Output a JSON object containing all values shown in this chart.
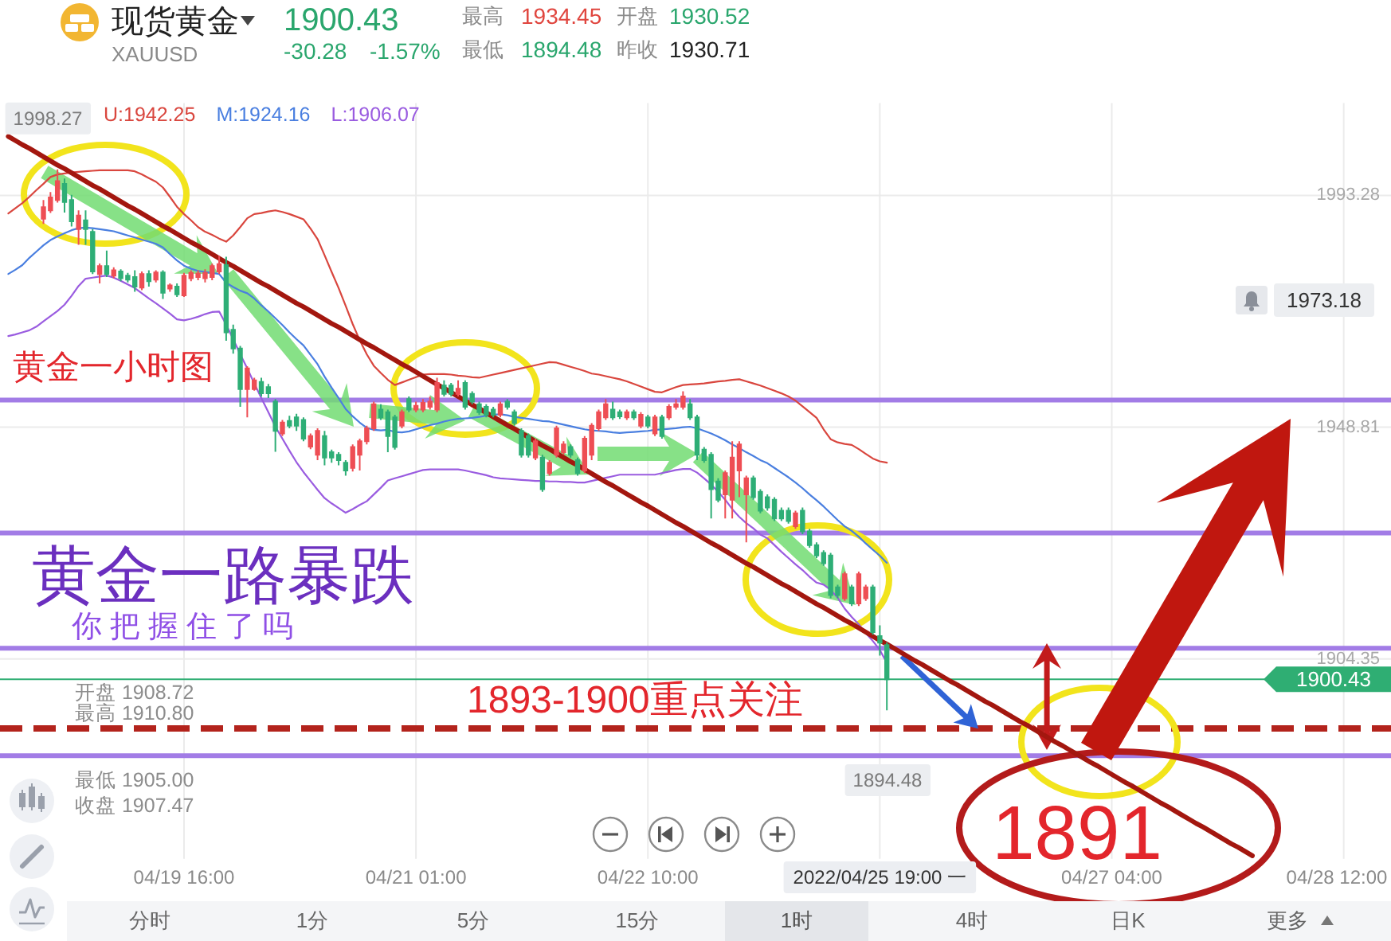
{
  "chart_data": {
    "type": "candlestick",
    "title": "现货黄金",
    "subtitle": "XAUUSD",
    "categories": [
      null,
      null,
      null,
      null,
      null,
      null,
      null,
      null,
      null,
      null,
      null,
      null,
      null,
      null,
      null,
      null,
      null,
      null,
      null,
      null,
      null,
      null,
      null,
      null,
      null,
      "04/19 16:00",
      null,
      null,
      null,
      null,
      null,
      null,
      null,
      null,
      null,
      null,
      null,
      null,
      null,
      null,
      null,
      null,
      null,
      null,
      null,
      null,
      null,
      null,
      null,
      null,
      null,
      null,
      null,
      null,
      null,
      null,
      null,
      null,
      "04/21 01:00",
      null,
      null,
      null,
      null,
      null,
      null,
      null,
      null,
      null,
      null,
      null,
      null,
      null,
      null,
      null,
      null,
      null,
      null,
      null,
      null,
      null,
      null,
      null,
      null,
      null,
      null,
      null,
      null,
      null,
      null,
      null,
      null,
      "04/22 10:00",
      null,
      null,
      null,
      null,
      null,
      null,
      null,
      null,
      null,
      null,
      null,
      null,
      null,
      null,
      null,
      null,
      null,
      null,
      null,
      null,
      null,
      null,
      null,
      null,
      null,
      null,
      null,
      null,
      null,
      null,
      null,
      null,
      "2022/04/25 19:00 一",
      null,
      null,
      null,
      null,
      null,
      null,
      null,
      null,
      null,
      null,
      null,
      null,
      null,
      null,
      null,
      null,
      null,
      null,
      null,
      null,
      null,
      null,
      null,
      null,
      null,
      null,
      null,
      null,
      null,
      null,
      null,
      null,
      "04/27 04:00",
      null,
      null,
      null,
      null,
      null,
      null,
      null,
      null,
      null,
      null,
      null,
      null,
      null,
      null,
      null,
      null,
      null,
      null,
      null,
      null,
      null,
      null,
      null,
      null,
      null,
      null,
      null,
      null,
      null,
      null,
      null,
      null,
      "04/28 12:00",
      null,
      null,
      null,
      null,
      null,
      null
    ],
    "ohlc": [
      null,
      null,
      null,
      null,
      null,
      [
        1988.8,
        1992.4,
        1987.8,
        1991.0
      ],
      [
        1990.4,
        1993.9,
        1989.9,
        1992.9
      ],
      [
        1992.4,
        1998.27,
        1991.9,
        1996.0
      ],
      [
        1995.5,
        1996.5,
        1990.0,
        1992.0
      ],
      [
        1992.4,
        1993.4,
        1987.3,
        1988.3
      ],
      [
        1986.8,
        1990.4,
        1983.8,
        1989.4
      ],
      [
        1988.5,
        1990.4,
        1983.8,
        1986.8
      ],
      [
        1986.3,
        1986.8,
        1978.2,
        1978.7
      ],
      [
        1978.2,
        1980.2,
        1976.4,
        1979.7
      ],
      [
        1979.7,
        1982.7,
        1977.6,
        1978.2
      ],
      [
        1977.9,
        1979.5,
        1977.4,
        1978.9
      ],
      [
        1978.7,
        1979.1,
        1976.8,
        1977.4
      ],
      [
        1977.9,
        1978.4,
        1976.6,
        1977.1
      ],
      [
        1977.6,
        1978.9,
        1974.8,
        1975.8
      ],
      [
        1975.6,
        1978.7,
        1975.1,
        1978.2
      ],
      [
        1978.2,
        1978.9,
        1975.8,
        1976.8
      ],
      [
        1977.1,
        1978.9,
        1976.6,
        1978.5
      ],
      [
        1978.5,
        1978.9,
        1973.4,
        1974.6
      ],
      [
        1975.4,
        1976.4,
        1974.8,
        1976.0
      ],
      [
        1975.8,
        1976.4,
        1973.8,
        1974.3
      ],
      [
        1974.1,
        1978.4,
        1973.8,
        1977.9
      ],
      [
        1977.4,
        1978.9,
        1976.8,
        1978.4
      ],
      [
        1977.6,
        1978.9,
        1977.0,
        1978.3
      ],
      [
        1977.4,
        1979.1,
        1976.6,
        1978.4
      ],
      [
        1977.6,
        1980.2,
        1977.0,
        1979.7
      ],
      [
        1978.7,
        1981.7,
        1978.2,
        1980.1
      ],
      [
        1979.9,
        1981.5,
        1965.4,
        1967.0
      ],
      [
        1967.5,
        1968.5,
        1962.9,
        1963.9
      ],
      [
        1963.9,
        1964.4,
        1952.7,
        1956.1
      ],
      [
        1956.1,
        1960.5,
        1950.7,
        1960.1
      ],
      [
        1956.1,
        1958.3,
        1955.8,
        1957.8
      ],
      [
        1957.5,
        1958.3,
        1954.7,
        1955.3
      ],
      [
        1956.5,
        1957.1,
        1954.4,
        1955.3
      ],
      [
        1953.7,
        1954.2,
        1944.1,
        1948.1
      ],
      [
        1947.6,
        1950.2,
        1947.1,
        1949.7
      ],
      [
        1950.0,
        1951.0,
        1948.6,
        1949.1
      ],
      [
        1950.7,
        1951.4,
        1948.1,
        1949.1
      ],
      [
        1950.2,
        1950.7,
        1946.1,
        1946.6
      ],
      [
        1945.1,
        1947.6,
        1944.6,
        1947.1
      ],
      [
        1943.5,
        1948.6,
        1942.5,
        1948.1
      ],
      [
        1947.1,
        1948.1,
        1941.5,
        1943.0
      ],
      [
        1944.0,
        1944.5,
        1942.0,
        1943.0
      ],
      [
        1943.5,
        1944.0,
        1941.5,
        1942.5
      ],
      [
        1942.0,
        1942.5,
        1939.5,
        1940.5
      ],
      [
        1941.0,
        1945.5,
        1940.3,
        1945.0
      ],
      [
        1943.5,
        1946.6,
        1940.5,
        1946.1
      ],
      [
        1946.1,
        1949.1,
        1945.5,
        1948.6
      ],
      [
        1948.6,
        1953.7,
        1948.1,
        1953.2
      ],
      [
        1952.2,
        1953.2,
        1950.2,
        1950.7
      ],
      [
        1951.7,
        1952.2,
        1944.0,
        1947.1
      ],
      [
        1950.7,
        1951.2,
        1944.5,
        1945.0
      ],
      [
        1949.1,
        1952.2,
        1948.6,
        1951.7
      ],
      [
        1954.2,
        1954.7,
        1951.7,
        1952.2
      ],
      [
        1952.2,
        1953.7,
        1951.7,
        1952.9
      ],
      [
        1952.2,
        1954.2,
        1951.7,
        1953.5
      ],
      [
        1952.7,
        1954.7,
        1952.2,
        1953.7
      ],
      [
        1952.2,
        1958.3,
        1951.7,
        1957.3
      ],
      [
        1956.8,
        1957.8,
        1954.7,
        1955.2
      ],
      [
        1956.8,
        1957.3,
        1954.7,
        1955.2
      ],
      [
        1955.2,
        1957.8,
        1954.7,
        1956.2
      ],
      [
        1957.3,
        1957.8,
        1952.2,
        1952.7
      ],
      [
        1955.2,
        1955.7,
        1953.2,
        1953.7
      ],
      [
        1953.2,
        1953.7,
        1951.2,
        1951.7
      ],
      [
        1952.7,
        1953.2,
        1950.7,
        1951.2
      ],
      [
        1952.2,
        1952.7,
        1950.7,
        1951.2
      ],
      [
        1951.2,
        1953.7,
        1950.7,
        1953.2
      ],
      [
        1953.7,
        1954.2,
        1952.2,
        1952.7
      ],
      [
        1951.7,
        1952.2,
        1949.1,
        1949.6
      ],
      [
        1948.1,
        1948.6,
        1943.0,
        1943.5
      ],
      [
        1947.1,
        1947.6,
        1943.0,
        1943.5
      ],
      [
        1943.0,
        1946.6,
        1942.5,
        1946.1
      ],
      [
        1943.0,
        1943.5,
        1936.4,
        1936.9
      ],
      [
        1940.0,
        1942.5,
        1939.5,
        1942.0
      ],
      [
        1943.5,
        1949.1,
        1943.0,
        1948.6
      ],
      [
        1944.0,
        1946.1,
        1943.5,
        1945.5
      ],
      [
        1945.0,
        1945.5,
        1943.0,
        1943.5
      ],
      [
        1942.5,
        1943.0,
        1939.5,
        1940.0
      ],
      [
        1940.5,
        1947.1,
        1940.0,
        1946.6
      ],
      [
        1943.5,
        1949.6,
        1942.5,
        1949.1
      ],
      [
        1948.6,
        1952.2,
        1948.1,
        1951.7
      ],
      [
        1950.7,
        1954.2,
        1950.2,
        1953.2
      ],
      [
        1952.2,
        1953.7,
        1950.2,
        1950.7
      ],
      [
        1951.7,
        1952.2,
        1950.4,
        1950.9
      ],
      [
        1950.7,
        1952.2,
        1950.2,
        1951.7
      ],
      [
        1951.7,
        1952.2,
        1950.2,
        1950.7
      ],
      [
        1949.1,
        1951.7,
        1948.6,
        1951.2
      ],
      [
        1950.7,
        1951.2,
        1948.6,
        1949.1
      ],
      [
        1947.6,
        1951.2,
        1947.1,
        1950.7
      ],
      [
        1950.7,
        1951.2,
        1946.6,
        1947.1
      ],
      [
        1950.7,
        1953.2,
        1950.2,
        1952.7
      ],
      [
        1952.7,
        1954.2,
        1952.2,
        1953.2
      ],
      [
        1952.7,
        1955.7,
        1952.2,
        1954.7
      ],
      [
        1953.2,
        1954.2,
        1950.2,
        1950.7
      ],
      [
        1950.7,
        1951.2,
        1942.5,
        1943.5
      ],
      [
        1944.5,
        1945.0,
        1942.0,
        1942.5
      ],
      [
        1943.5,
        1944.0,
        1931.3,
        1936.9
      ],
      [
        1938.4,
        1939.0,
        1934.4,
        1934.9
      ],
      [
        1935.9,
        1940.5,
        1931.3,
        1940.0
      ],
      [
        1934.9,
        1946.1,
        1931.3,
        1943.0
      ],
      [
        1940.5,
        1946.1,
        1935.4,
        1945.5
      ],
      [
        1935.9,
        1939.5,
        1926.7,
        1939.0
      ],
      [
        1939.0,
        1939.5,
        1934.9,
        1935.4
      ],
      [
        1936.4,
        1936.9,
        1932.3,
        1932.8
      ],
      [
        1935.4,
        1935.9,
        1932.8,
        1933.4
      ],
      [
        1934.9,
        1935.4,
        1930.8,
        1931.3
      ],
      [
        1932.8,
        1933.4,
        1930.8,
        1931.3
      ],
      [
        1932.8,
        1933.4,
        1930.3,
        1930.8
      ],
      [
        1929.8,
        1932.8,
        1929.3,
        1932.3
      ],
      [
        1932.8,
        1933.4,
        1928.3,
        1928.8
      ],
      [
        1928.8,
        1929.3,
        1925.7,
        1926.2
      ],
      [
        1926.2,
        1926.7,
        1923.7,
        1924.2
      ],
      [
        1924.7,
        1925.2,
        1922.2,
        1922.7
      ],
      [
        1924.2,
        1924.7,
        1916.0,
        1916.6
      ],
      [
        1918.1,
        1918.6,
        1916.0,
        1916.6
      ],
      [
        1916.0,
        1921.1,
        1915.5,
        1920.6
      ],
      [
        1918.1,
        1918.6,
        1914.5,
        1915.0
      ],
      [
        1915.0,
        1921.1,
        1914.5,
        1920.6
      ],
      [
        1916.0,
        1918.6,
        1915.5,
        1918.1
      ],
      [
        1918.1,
        1918.6,
        1909.0,
        1909.5
      ],
      [
        1908.72,
        1910.8,
        1905.0,
        1907.47
      ],
      [
        1907.0,
        1907.5,
        1894.48,
        1900.43
      ],
      null,
      null,
      null,
      null,
      null,
      null,
      null,
      null,
      null,
      null,
      null,
      null,
      null,
      null,
      null,
      null,
      null,
      null,
      null,
      null,
      null,
      null,
      null,
      null,
      null,
      null,
      null,
      null,
      null,
      null,
      null,
      null,
      null,
      null,
      null,
      null,
      null,
      null,
      null,
      null,
      null,
      null,
      null,
      null,
      null,
      null,
      null,
      null,
      null,
      null,
      null,
      null,
      null,
      null,
      null,
      null,
      null,
      null,
      null,
      null,
      null,
      null,
      null,
      null,
      null,
      null,
      null,
      null,
      null,
      null,
      null
    ],
    "colors": [
      null,
      null,
      null,
      null,
      null,
      "#ee4e54",
      "#ee4e54",
      "#ee4e54",
      "#2eae76",
      "#2eae76",
      "#ee4e54",
      "#2eae76",
      "#2eae76",
      "#ee4e54",
      "#2eae76",
      "#ee4e54",
      "#2eae76",
      "#2eae76",
      "#2eae76",
      "#ee4e54",
      "#2eae76",
      "#ee4e54",
      "#2eae76",
      "#ee4e54",
      "#2eae76",
      "#ee4e54",
      "#ee4e54",
      "#ee4e54",
      "#ee4e54",
      "#ee4e54",
      "#ee4e54",
      "#2eae76",
      "#2eae76",
      "#2eae76",
      "#ee4e54",
      "#ee4e54",
      "#2eae76",
      "#2eae76",
      "#2eae76",
      "#ee4e54",
      "#2eae76",
      "#2eae76",
      "#2eae76",
      "#ee4e54",
      "#ee4e54",
      "#2eae76",
      "#2eae76",
      "#2eae76",
      "#2eae76",
      "#ee4e54",
      "#ee4e54",
      "#ee4e54",
      "#ee4e54",
      "#2eae76",
      "#2eae76",
      "#2eae76",
      "#ee4e54",
      "#2eae76",
      "#ee4e54",
      "#ee4e54",
      "#ee4e54",
      "#ee4e54",
      "#2eae76",
      "#2eae76",
      "#ee4e54",
      "#2eae76",
      "#2eae76",
      "#2eae76",
      "#2eae76",
      "#2eae76",
      "#ee4e54",
      "#2eae76",
      "#2eae76",
      "#2eae76",
      "#2eae76",
      "#ee4e54",
      "#2eae76",
      "#ee4e54",
      "#ee4e54",
      "#ee4e54",
      "#2eae76",
      "#2eae76",
      "#ee4e54",
      "#ee4e54",
      "#ee4e54",
      "#ee4e54",
      "#2eae76",
      "#2eae76",
      "#ee4e54",
      "#2eae76",
      "#ee4e54",
      "#2eae76",
      "#ee4e54",
      "#2eae76",
      "#ee4e54",
      "#ee4e54",
      "#ee4e54",
      "#2eae76",
      "#2eae76",
      "#2eae76",
      "#2eae76",
      "#2eae76",
      "#ee4e54",
      "#ee4e54",
      "#ee4e54",
      "#ee4e54",
      "#2eae76",
      "#2eae76",
      "#2eae76",
      "#2eae76",
      "#2eae76",
      "#2eae76",
      "#ee4e54",
      "#2eae76",
      "#2eae76",
      "#2eae76",
      "#2eae76",
      "#2eae76",
      "#2eae76",
      "#ee4e54",
      "#2eae76",
      "#ee4e54",
      "#ee4e54",
      "#2eae76",
      "#2eae76",
      "#2eae76",
      null,
      null,
      null,
      null,
      null,
      null,
      null,
      null,
      null,
      null,
      null,
      null,
      null,
      null,
      null,
      null,
      null,
      null,
      null,
      null,
      null,
      null,
      null,
      null,
      null,
      null,
      null,
      null,
      null,
      null,
      null,
      null,
      null,
      null,
      null,
      null,
      null,
      null,
      null,
      null,
      null,
      null,
      null,
      null,
      null,
      null,
      null,
      null,
      null,
      null,
      null,
      null,
      null,
      null,
      null,
      null,
      null,
      null,
      null,
      null,
      null,
      null,
      null,
      null,
      null,
      null,
      null,
      null,
      null,
      null,
      null
    ],
    "series": [
      {
        "name": "U:1942.25",
        "type": "line",
        "color": "#d9463e",
        "values": [
          1989.8,
          1990.8,
          1991.8,
          1993.0,
          1994.3,
          1995.5,
          1996.8,
          1997.3,
          1997.5,
          1997.7,
          1997.8,
          1997.9,
          1998.0,
          1998.1,
          1998.1,
          1998.1,
          1998.1,
          1998.1,
          1997.9,
          1997.3,
          1996.6,
          1995.9,
          1994.8,
          1993.0,
          1991.1,
          1989.7,
          1988.5,
          1987.2,
          1986.3,
          1985.7,
          1985.0,
          1984.4,
          1985.6,
          1987.2,
          1988.9,
          1989.7,
          1989.9,
          1990.2,
          1990.4,
          1990.1,
          1989.7,
          1989.2,
          1988.7,
          1986.9,
          1984.9,
          1981.8,
          1978.6,
          1975.5,
          1972.1,
          1968.6,
          1965.5,
          1962.8,
          1960.6,
          1959.2,
          1957.9,
          1956.9,
          1957.4,
          1957.9,
          1958.4,
          1958.9,
          1959.0,
          1959.0,
          1959.0,
          1958.9,
          1958.7,
          1958.6,
          1958.4,
          1958.3,
          1958.6,
          1958.9,
          1959.2,
          1959.5,
          1959.8,
          1960.1,
          1960.4,
          1960.7,
          1961.0,
          1961.3,
          1961.2,
          1960.8,
          1960.4,
          1960.0,
          1959.6,
          1959.1,
          1958.9,
          1958.6,
          1958.3,
          1958.0,
          1957.6,
          1957.1,
          1956.6,
          1956.1,
          1955.6,
          1955.5,
          1956.0,
          1956.5,
          1956.9,
          1957.0,
          1957.1,
          1957.2,
          1957.4,
          1957.6,
          1957.7,
          1957.9,
          1958.0,
          1957.6,
          1957.2,
          1956.8,
          1956.3,
          1955.8,
          1955.3,
          1954.7,
          1953.9,
          1952.8,
          1951.7,
          1950.6,
          1948.4,
          1946.5,
          1945.9,
          1945.6,
          1945.4,
          1944.6,
          1943.7,
          1942.8,
          1942.25,
          1942.0,
          null,
          null,
          null,
          null,
          null,
          null,
          null,
          null,
          null,
          null,
          null,
          null,
          null,
          null,
          null,
          null,
          null,
          null,
          null,
          null,
          null,
          null,
          null,
          null,
          null,
          null,
          null,
          null,
          null,
          null,
          null,
          null,
          null,
          null,
          null,
          null,
          null,
          null,
          null,
          null,
          null,
          null,
          null,
          null,
          null,
          null,
          null,
          null,
          null,
          null,
          null,
          null,
          null,
          null,
          null,
          null,
          null,
          null,
          null,
          null,
          null,
          null,
          null,
          null,
          null,
          null,
          null,
          null,
          null,
          null,
          null
        ]
      },
      {
        "name": "M:1924.16",
        "type": "line",
        "color": "#4a7fe0",
        "values": [
          1978.2,
          1979.0,
          1979.9,
          1981.3,
          1982.5,
          1983.7,
          1984.7,
          1985.4,
          1986.0,
          1986.6,
          1987.0,
          1987.1,
          1987.0,
          1986.8,
          1986.6,
          1986.4,
          1986.0,
          1985.6,
          1985.2,
          1984.8,
          1984.4,
          1984.0,
          1983.3,
          1982.0,
          1980.8,
          1979.8,
          1979.2,
          1978.8,
          1978.6,
          1978.4,
          1978.2,
          1976.5,
          1975.7,
          1975.0,
          1974.5,
          1973.5,
          1972.2,
          1971.0,
          1969.7,
          1968.4,
          1967.0,
          1965.7,
          1964.5,
          1962.7,
          1960.9,
          1958.5,
          1956.4,
          1954.4,
          1952.3,
          1950.9,
          1949.7,
          1948.7,
          1948.3,
          1948.2,
          1948.3,
          1947.9,
          1947.8,
          1948.0,
          1948.4,
          1948.8,
          1949.2,
          1949.5,
          1949.9,
          1950.2,
          1950.4,
          1950.5,
          1950.6,
          1950.8,
          1951.0,
          1951.2,
          1951.3,
          1951.1,
          1950.8,
          1950.6,
          1950.4,
          1950.2,
          1950.0,
          1949.9,
          1949.6,
          1949.3,
          1949.0,
          1948.7,
          1948.4,
          1948.2,
          1948.1,
          1948.0,
          1947.8,
          1947.7,
          1947.8,
          1947.9,
          1948.0,
          1948.1,
          1948.3,
          1948.4,
          1948.5,
          1948.6,
          1948.8,
          1948.9,
          1948.6,
          1948.1,
          1947.6,
          1947.0,
          1946.3,
          1945.5,
          1944.8,
          1944.0,
          1943.3,
          1942.5,
          1941.9,
          1941.0,
          1940.1,
          1939.2,
          1938.2,
          1937.1,
          1935.9,
          1934.8,
          1933.6,
          1932.3,
          1931.0,
          1929.8,
          1928.9,
          1927.8,
          1926.5,
          1925.3,
          1924.16,
          1922.8,
          null,
          null,
          null,
          null,
          null,
          null,
          null,
          null,
          null,
          null,
          null,
          null,
          null,
          null,
          null,
          null,
          null,
          null,
          null,
          null,
          null,
          null,
          null,
          null,
          null,
          null,
          null,
          null,
          null,
          null,
          null,
          null,
          null,
          null,
          null,
          null,
          null,
          null,
          null,
          null,
          null,
          null,
          null,
          null,
          null,
          null,
          null,
          null,
          null,
          null,
          null,
          null,
          null,
          null,
          null,
          null,
          null,
          null,
          null,
          null,
          null,
          null,
          null,
          null,
          null,
          null,
          null,
          null,
          null,
          null,
          null
        ]
      },
      {
        "name": "L:1906.07",
        "type": "line",
        "color": "#9a5ce0",
        "values": [
          1966.3,
          1966.6,
          1967.0,
          1967.4,
          1968.1,
          1969.1,
          1970.1,
          1971.1,
          1972.3,
          1974.0,
          1975.9,
          1977.3,
          1977.5,
          1977.7,
          1977.9,
          1977.5,
          1976.9,
          1976.2,
          1975.5,
          1974.5,
          1973.5,
          1972.6,
          1971.6,
          1970.6,
          1969.5,
          1969.3,
          1969.6,
          1970.0,
          1970.5,
          1970.9,
          1971.0,
          1968.5,
          1965.7,
          1962.8,
          1960.1,
          1957.2,
          1954.4,
          1951.7,
          1948.9,
          1946.6,
          1944.3,
          1942.1,
          1940.2,
          1938.5,
          1936.8,
          1935.2,
          1934.2,
          1933.3,
          1932.4,
          1933.1,
          1933.9,
          1934.6,
          1935.9,
          1937.2,
          1938.6,
          1939.0,
          1939.4,
          1939.8,
          1940.2,
          1940.6,
          1940.7,
          1940.7,
          1940.7,
          1940.7,
          1940.7,
          1940.5,
          1940.2,
          1939.9,
          1939.6,
          1939.2,
          1939.0,
          1938.9,
          1938.8,
          1938.7,
          1938.6,
          1938.5,
          1938.5,
          1938.4,
          1938.4,
          1938.3,
          1938.3,
          1938.2,
          1938.2,
          1938.5,
          1938.8,
          1939.1,
          1939.4,
          1939.7,
          1939.7,
          1939.7,
          1939.7,
          1939.7,
          1939.7,
          1940.0,
          1940.3,
          1940.6,
          1940.8,
          1940.8,
          1940.1,
          1939.0,
          1937.8,
          1936.4,
          1934.9,
          1933.1,
          1931.6,
          1930.4,
          1929.4,
          1928.2,
          1927.5,
          1926.2,
          1924.9,
          1923.7,
          1922.5,
          1921.4,
          1920.1,
          1919.0,
          1918.6,
          1917.6,
          1916.1,
          1914.0,
          1912.4,
          1911.0,
          1909.3,
          1907.8,
          1906.07,
          1903.6,
          null,
          null,
          null,
          null,
          null,
          null,
          null,
          null,
          null,
          null,
          null,
          null,
          null,
          null,
          null,
          null,
          null,
          null,
          null,
          null,
          null,
          null,
          null,
          null,
          null,
          null,
          null,
          null,
          null,
          null,
          null,
          null,
          null,
          null,
          null,
          null,
          null,
          null,
          null,
          null,
          null,
          null,
          null,
          null,
          null,
          null,
          null,
          null,
          null,
          null,
          null,
          null,
          null,
          null,
          null,
          null,
          null,
          null,
          null,
          null,
          null,
          null,
          null,
          null,
          null,
          null,
          null,
          null,
          null,
          null,
          null
        ]
      },
      {
        "type": "line",
        "color": "#a3170f",
        "values": [
          2004.6,
          2003.8,
          2003.0,
          2002.3,
          2001.5,
          2000.7,
          1999.9,
          1999.1,
          1998.4,
          1997.6,
          1996.8,
          1996.0,
          1995.2,
          1994.5,
          1993.7,
          1992.9,
          1992.1,
          1991.3,
          1990.6,
          1989.8,
          1989.0,
          1988.2,
          1987.4,
          1986.7,
          1985.9,
          1985.1,
          1984.3,
          1983.6,
          1982.8,
          1982.0,
          1981.2,
          1980.4,
          1979.7,
          1978.9,
          1978.1,
          1977.3,
          1976.5,
          1975.8,
          1975.0,
          1974.2,
          1973.4,
          1972.6,
          1971.9,
          1971.1,
          1970.3,
          1969.5,
          1968.7,
          1968.0,
          1967.2,
          1966.4,
          1965.6,
          1964.8,
          1964.1,
          1963.3,
          1962.5,
          1961.7,
          1960.9,
          1960.2,
          1959.4,
          1958.6,
          1957.8,
          1957.0,
          1956.3,
          1955.5,
          1954.7,
          1953.9,
          1953.1,
          1952.4,
          1951.6,
          1950.8,
          1950.0,
          1949.2,
          1948.5,
          1947.7,
          1946.9,
          1946.1,
          1945.3,
          1944.6,
          1943.8,
          1943.0,
          1942.2,
          1941.5,
          1940.7,
          1939.9,
          1939.1,
          1938.3,
          1937.6,
          1936.8,
          1936.0,
          1935.2,
          1934.4,
          1933.7,
          1932.9,
          1932.1,
          1931.3,
          1930.5,
          1929.8,
          1929.0,
          1928.2,
          1927.4,
          1926.6,
          1925.9,
          1925.1,
          1924.3,
          1923.5,
          1922.7,
          1922.0,
          1921.2,
          1920.4,
          1919.6,
          1918.8,
          1918.1,
          1917.3,
          1916.5,
          1915.7,
          1914.9,
          1914.2,
          1913.4,
          1912.6,
          1911.8,
          1911.1,
          1910.3,
          1909.5,
          1908.7,
          1907.9,
          1907.2,
          1906.4,
          1905.6,
          1904.8,
          1904.0,
          1903.3,
          1902.5,
          1901.7,
          1900.9,
          1900.1,
          1899.4,
          1898.6,
          1897.8,
          1897.0,
          1896.2,
          1895.5,
          1894.7,
          1893.9,
          1893.1,
          1892.3,
          1891.6,
          1890.8,
          1890.0,
          1889.2,
          1888.4,
          1887.7,
          1886.9,
          1886.1,
          1885.3,
          1884.5,
          1883.8,
          1883.0,
          1882.2,
          1881.4,
          1880.6,
          1879.9,
          1879.1,
          1878.3,
          1877.5,
          1876.7,
          1876.0,
          1875.2,
          1874.4,
          1873.6,
          1872.8,
          1872.1,
          1871.3,
          1870.5,
          1869.7,
          1868.9,
          1868.2,
          1867.4,
          1866.6,
          null,
          null,
          null,
          null,
          null,
          null,
          null,
          null,
          null,
          null,
          null,
          null,
          null,
          null,
          null,
          null,
          null,
          null,
          null
        ]
      }
    ],
    "ylim": [
      1866,
      2011
    ],
    "yticks": [
      1993.28,
      1948.81,
      1904.35
    ],
    "grid": true,
    "legend": "top left",
    "ref_lines": [
      {
        "axis": "y",
        "value": 1954.0,
        "color": "#a27ce6"
      },
      {
        "axis": "y",
        "value": 1928.5,
        "color": "#a27ce6"
      },
      {
        "axis": "y",
        "value": 1906.4,
        "color": "#a27ce6"
      },
      {
        "axis": "y",
        "value": 1885.8,
        "color": "#a27ce6"
      },
      {
        "axis": "y",
        "value": 1891,
        "color": "#b3231c",
        "line_style": "dashed"
      },
      {
        "axis": "y",
        "value": 1900.43,
        "label": "1900.43",
        "color": "#2fae73"
      }
    ],
    "annotations": [
      "1900.43",
      "-30.28",
      "-1.57%",
      "最高",
      "1934.45",
      "开盘",
      "1930.52",
      "最低",
      "1894.48",
      "昨收",
      "1930.71",
      {
        "text": "1998.27",
        "y": 1998.27
      },
      "1894.48",
      "1973.18",
      "开盘 1908.72",
      "最高 1910.80",
      "最低 1905.00",
      "收盘 1907.47",
      "黄金一小时图",
      "黄金一路暴跌",
      "你把握住了吗",
      "1893-1900重点关注",
      {
        "text": "1891",
        "y": 1891
      },
      "分时",
      "1分",
      "5分",
      "15分",
      "1时",
      "4时",
      "日K",
      "更多"
    ]
  }
}
